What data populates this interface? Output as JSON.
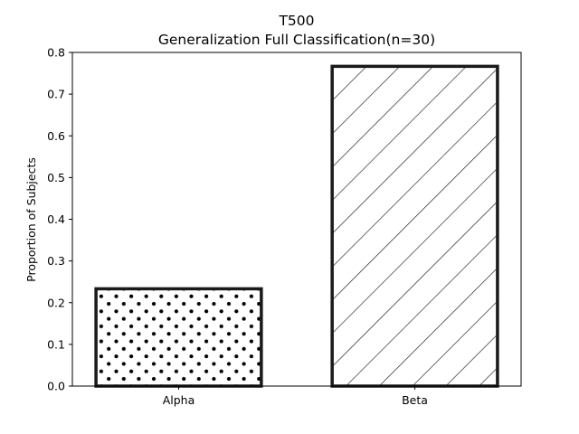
{
  "chart_data": {
    "type": "bar",
    "title": "T500",
    "subtitle": "Generalization Full Classification(n=30)",
    "xlabel": "",
    "ylabel": "Proportion of Subjects",
    "categories": [
      "Alpha",
      "Beta"
    ],
    "values": [
      0.2333,
      0.7667
    ],
    "ylim": [
      0,
      0.8
    ],
    "yticks": [
      "0.0",
      "0.1",
      "0.2",
      "0.3",
      "0.4",
      "0.5",
      "0.6",
      "0.7",
      "0.8"
    ],
    "patterns": [
      "dots",
      "diagonal-hatch"
    ],
    "bar_fill": "#ffffff",
    "bar_edge_color": "#1a1a1a",
    "grid": false,
    "legend": "none"
  }
}
